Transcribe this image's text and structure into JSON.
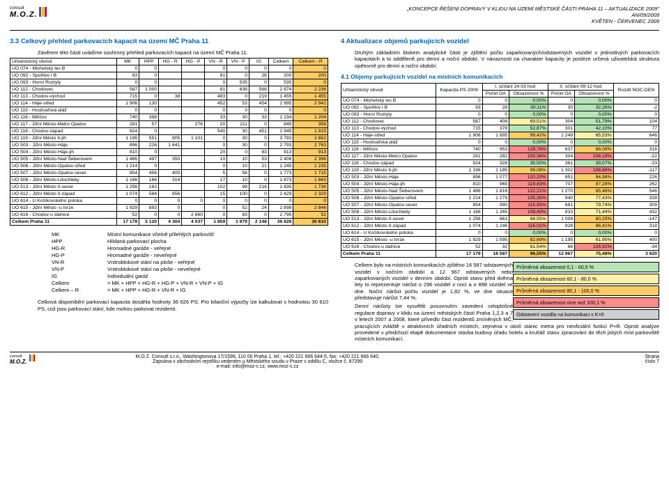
{
  "header": {
    "logo": "M.O.Z.",
    "consult": "consult",
    "right1": "„KONCEPCE ŘEŠENÍ DOPRAVY V KLIDU NA ÚZEMÍ MĚSTSKÉ ČÁSTI PRAHA 11 – AKTUALIZACE 2009\"",
    "right2": "AN/09/2009",
    "right3": "KVĚTEN - ČERVENEC 2009"
  },
  "left": {
    "title": "3.3 Celkový přehled parkovacích kapacit na území MČ Praha 11",
    "intro": "Závěrem této části uvádíme souhrnný přehled parkovacích kapacit na území MČ Praha 11.",
    "table": {
      "cols": [
        "Urbanistický obvod",
        "MK",
        "HPP",
        "HG - R",
        "HG - P",
        "VN - R",
        "VN - P",
        "IG",
        "Celkem",
        "Celkem - R"
      ],
      "rows": [
        [
          "UO 074 - Michelský les B",
          "0",
          "0",
          "",
          "",
          "0",
          "0",
          "0",
          "0",
          "0"
        ],
        [
          "UO 092 - Spořilov I B",
          "93",
          "0",
          "",
          "",
          "81",
          "0",
          "26",
          "200",
          "200"
        ],
        [
          "UO 093 - Horní Roztyly",
          "0",
          "0",
          "",
          "",
          "0",
          "535",
          "0",
          "535",
          "0"
        ],
        [
          "UO 112 - Chodovec",
          "587",
          "1 000",
          "",
          "",
          "81",
          "638",
          "568",
          "2 874",
          "2 236"
        ],
        [
          "UO 113 - Chodov-východ",
          "715",
          "0",
          "38",
          "",
          "483",
          "0",
          "219",
          "1 455",
          "1 455"
        ],
        [
          "UO 114 - Háje-střed",
          "1 906",
          "130",
          "",
          "",
          "452",
          "53",
          "454",
          "2 995",
          "2 942"
        ],
        [
          "UO 115 - Hostivařská pláž",
          "0",
          "0",
          "",
          "",
          "0",
          "0",
          "0",
          "0",
          "0"
        ],
        [
          "UO 116 - Milíčov",
          "740",
          "398",
          "",
          "",
          "33",
          "30",
          "33",
          "1 234",
          "1 204"
        ],
        [
          "UO 117 - Jižní Město-Metro Opatov",
          "281",
          "57",
          "",
          "276",
          "20",
          "211",
          "0",
          "845",
          "358"
        ],
        [
          "UO 118 - Chodov-západ",
          "924",
          "0",
          "",
          "",
          "540",
          "30",
          "451",
          "1 945",
          "1 915"
        ],
        [
          "UO 119 - Jižní Město II-jih",
          "1 196",
          "551",
          "905",
          "1 101",
          "0",
          "30",
          "0",
          "3 783",
          "2 652"
        ],
        [
          "UO 503 - Jižní Město-Háje",
          "896",
          "226",
          "1 641",
          "",
          "0",
          "30",
          "0",
          "2 793",
          "2 763"
        ],
        [
          "UO 504 - Jižní Město-Háje-jih",
          "810",
          "0",
          "",
          "",
          "20",
          "0",
          "83",
          "913",
          "913"
        ],
        [
          "UO 505 - Jižní Město-Nad Šeberovem",
          "1 486",
          "497",
          "350",
          "",
          "10",
          "10",
          "53",
          "2 406",
          "2 396"
        ],
        [
          "UO 506 - Jižní Město-Opatov-střed",
          "1 214",
          "0",
          "",
          "",
          "0",
          "10",
          "21",
          "1 245",
          "1 235"
        ],
        [
          "UO 507 - Jižní Město-Opatov-sever",
          "854",
          "456",
          "400",
          "",
          "5",
          "58",
          "0",
          "1 773",
          "1 715"
        ],
        [
          "UO 508 - Jižní Město-Litochleby",
          "1 166",
          "166",
          "314",
          "",
          "17",
          "10",
          "0",
          "1 673",
          "1 663"
        ],
        [
          "UO 513 - Jižní Město II-sever",
          "1 256",
          "162",
          "",
          "",
          "102",
          "99",
          "216",
          "1 835",
          "1 736"
        ],
        [
          "UO 612 - Jižní Město II-západ",
          "1 074",
          "584",
          "656",
          "",
          "15",
          "100",
          "0",
          "2 429",
          "2 329"
        ],
        [
          "UO 614 - U Košíkovského potoka",
          "0",
          "0",
          "0",
          "0",
          "0",
          "0",
          "0",
          "0",
          "0"
        ],
        [
          "UO 615 - Jižní Město -u tvrze",
          "1 929",
          "893",
          "0",
          "",
          "0",
          "52",
          "24",
          "2 898",
          "2 846"
        ],
        [
          "UO 616 - Chodov-u dálnice",
          "52",
          "0",
          "0",
          "2 660",
          "0",
          "83",
          "0",
          "2 795",
          "52"
        ]
      ],
      "sum": [
        "Celkem Praha 11",
        "17 179",
        "5 120",
        "4 304",
        "4 037",
        "1 859",
        "1 979",
        "2 148",
        "36 626",
        "30 610"
      ]
    },
    "legend": [
      [
        "MK",
        "Místní komunikace včetně přilehlých parkovišť"
      ],
      [
        "HPP",
        "Hlídaná parkovací plocha"
      ],
      [
        "HG-R",
        "Hromadné garáže - veřejné"
      ],
      [
        "HG-P",
        "Hromadné garáže - neveřejné"
      ],
      [
        "VN-R",
        "Vnitroblokové stání na ploše - veřejné"
      ],
      [
        "VN-P",
        "Vnitroblokové stání na ploše - neveřejné"
      ],
      [
        "IG",
        "Individuální garáž"
      ],
      [
        "Celkem",
        "= MK + HPP + HG-R + HG-P + VN-R + VN-P + IG"
      ],
      [
        "Celkem – R",
        "= MK + HPP + HG-R + VN-R + IG"
      ]
    ],
    "outro": "Celková disponibilní parkovací kapacita dosáhla hodnoty 36 626 PS. Pro bilanční výpočty lze kalkulovat s hodnotou 30 610 PS, což jsou parkovací stání, kde mohou parkovat rezidenti."
  },
  "right": {
    "title": "4  Aktualizace objemů parkujících vozidel",
    "para1": "Druhým základním blokem analytické části je zjištění počtu zaparkovaných/odstavených vozidel v jednotlivých parkovacích kapacitách a to odděleně pro denní a noční období. V návaznosti na charakter kapacity je posléze určená uživatelská struktura opětovně pro denní a noční období.",
    "sub": "4.1  Objemy parkujících vozidel na místních komunikacích",
    "table": {
      "head1": [
        "Urbanistický obvod",
        "Kapacita PS 2009",
        "I. sčítání 24-03 hod",
        "II. sčítání 09-12 hod",
        "Rozdíl NOC-DEN"
      ],
      "head2": [
        "Počet OA",
        "Obsazenost %",
        "Počet OA",
        "Obsazenost %"
      ],
      "rows": [
        {
          "cells": [
            "UO 074 - Michelský les B",
            "0",
            "0",
            "0,00%",
            "0",
            "0,00%",
            "0"
          ],
          "c1": "nb-green",
          "c2": "nb-green"
        },
        {
          "cells": [
            "UO 092 - Spořilov I B",
            "93",
            "28",
            "30,11%",
            "30",
            "32,26%",
            "-2"
          ],
          "c1": "nb-green",
          "c2": "nb-green"
        },
        {
          "cells": [
            "UO 093 - Horní Roztyly",
            "0",
            "0",
            "0,00%",
            "0",
            "0,00%",
            "0"
          ],
          "c1": "nb-green",
          "c2": "nb-green"
        },
        {
          "cells": [
            "UO 112 - Chodovec",
            "587",
            "408",
            "69,51%",
            "304",
            "51,79%",
            "104"
          ],
          "c1": "nb-yellow",
          "c2": "nb-green"
        },
        {
          "cells": [
            "UO 113 - Chodov-východ",
            "715",
            "378",
            "52,87%",
            "301",
            "42,10%",
            "77"
          ],
          "c1": "nb-green",
          "c2": "nb-green"
        },
        {
          "cells": [
            "UO 114 - Háje-střed",
            "1 906",
            "1 895",
            "99,42%",
            "1 249",
            "65,53%",
            "646"
          ],
          "c1": "nb-orange",
          "c2": "nb-yellow"
        },
        {
          "cells": [
            "UO 115 - Hostivařská pláž",
            "0",
            "0",
            "0,00%",
            "0",
            "0,00%",
            "0"
          ],
          "c1": "nb-green",
          "c2": "nb-green"
        },
        {
          "cells": [
            "UO 116 - Milíčov",
            "740",
            "953",
            "128,78%",
            "637",
            "86,08%",
            "316"
          ],
          "c1": "nb-red",
          "c2": "nb-orange"
        },
        {
          "cells": [
            "UO 117 - Jižní Město-Metro Opatov",
            "281",
            "282",
            "100,36%",
            "304",
            "108,19%",
            "-22"
          ],
          "c1": "nb-red",
          "c2": "nb-red"
        },
        {
          "cells": [
            "UO 118 - Chodov-západ",
            "924",
            "328",
            "35,50%",
            "361",
            "39,07%",
            "-33"
          ],
          "c1": "nb-green",
          "c2": "nb-green"
        },
        {
          "cells": [
            "UO 119 - Jižní Město II-jih",
            "1 196",
            "1 185",
            "99,08%",
            "1 302",
            "108,86%",
            "-117"
          ],
          "c1": "nb-orange",
          "c2": "nb-red"
        },
        {
          "cells": [
            "UO 503 - Jižní Město-Háje",
            "896",
            "1 077",
            "120,20%",
            "851",
            "94,98%",
            "226"
          ],
          "c1": "nb-red",
          "c2": "nb-orange"
        },
        {
          "cells": [
            "UO 504 - Jižní Město-Háje-jih",
            "810",
            "969",
            "119,63%",
            "707",
            "87,28%",
            "262"
          ],
          "c1": "nb-red",
          "c2": "nb-orange"
        },
        {
          "cells": [
            "UO 505 - Jižní Město-Nad Šeberovem",
            "1 486",
            "1 816",
            "122,21%",
            "1 270",
            "85,46%",
            "546"
          ],
          "c1": "nb-red",
          "c2": "nb-orange"
        },
        {
          "cells": [
            "UO 506 - Jižní Město-Opatov-střed",
            "1 214",
            "1 279",
            "105,35%",
            "940",
            "77,43%",
            "339"
          ],
          "c1": "nb-red",
          "c2": "nb-yellow"
        },
        {
          "cells": [
            "UO 507 - Jižní Město-Opatov-sever",
            "854",
            "990",
            "115,93%",
            "681",
            "79,74%",
            "309"
          ],
          "c1": "nb-red",
          "c2": "nb-yellow"
        },
        {
          "cells": [
            "UO 508 - Jižní Město-Litochleby",
            "1 166",
            "1 265",
            "108,49%",
            "833",
            "71,44%",
            "432"
          ],
          "c1": "nb-red",
          "c2": "nb-yellow"
        },
        {
          "cells": [
            "UO 513 - Jižní Město II-sever",
            "1 256",
            "861",
            "68,55%",
            "1 008",
            "80,25%",
            "-147"
          ],
          "c1": "nb-yellow",
          "c2": "nb-orange"
        },
        {
          "cells": [
            "UO 612 - Jižní Město II-západ",
            "1 074",
            "1 246",
            "116,01%",
            "928",
            "86,41%",
            "318"
          ],
          "c1": "nb-red",
          "c2": "nb-orange"
        },
        {
          "cells": [
            "UO 614 - U Košíkovského potoka",
            "0",
            "0",
            "0,00%",
            "0",
            "0,00%",
            "0"
          ],
          "c1": "nb-green",
          "c2": "nb-green"
        },
        {
          "cells": [
            "UO 615 - Jižní Město -u tvrze",
            "1 929",
            "1 595",
            "82,69%",
            "1 195",
            "61,95%",
            "400"
          ],
          "c1": "nb-orange",
          "c2": "nb-yellow"
        },
        {
          "cells": [
            "UO 616 - Chodov-u dálnice",
            "52",
            "32",
            "61,54%",
            "66",
            "126,92%",
            "-34"
          ],
          "c1": "nb-yellow",
          "c2": "nb-red"
        }
      ],
      "sum": [
        "Celkem Praha 11",
        "17 179",
        "16 587",
        "96,55%",
        "12 967",
        "75,48%",
        "3 620"
      ],
      "sumc1": "nb-orange",
      "sumc2": "nb-yellow"
    },
    "notes": [
      {
        "t": "Průměrná obsazenost 0,1 - 60,0 %",
        "c": "nb-green"
      },
      {
        "t": "Průměrná obsazenost 60,1 - 80,0 %",
        "c": "nb-yellow"
      },
      {
        "t": "Průměrná obsazenost 80,1 - 100,0 %",
        "c": "nb-orange"
      },
      {
        "t": "Průměrná obsazenost více než 100,1 %",
        "c": "nb-red"
      },
      {
        "t": "Odstavení vozidla na komunikaci s K=0",
        "c": "nb-gray"
      }
    ],
    "para2": "Celkem bylo na místních komunikacích zjištěno 16 587 odstavených vozidel v nočním období a 12 967 odstavených nebo zaparkovaných vozidel v denním období. Oproti stavu před dvěma lety to reprezentuje nárůst o 296 vozidel v noci a o 898 vozidel ve dne. Noční nárůst počtu vozidel je 1,82 %, ve dne situace představuje nárůst 7,44 %.",
    "para3": "Denní nárůsty lze vysvětlit posuvnutím zavedení celoplošné regulace dopravy v klidu na území městských částí Praha 1,2,3 a 7 v letech 2007 a 2008, které přivedlo část rezidentů zmíněných MČ, pracujících zvláště v atraktivních úřadních místech, zejména v okolí stanic metra pro neoficiální funkci P+R. Oproti analýze provedené v předchozí etapě dokumentace stavba budovy úřadu hotelu a kruháč stavu zpracování do těch jistých míst parkoviště místních komunikací."
  },
  "footer": {
    "left1": "M.O.Z. Consult s.r.o., Washingtonova 17/1599, 110 00 Praha 1, tel.: +420 221 666 644-5, fax: +420 221 666 640,",
    "left2": "Zapsána v obchodním rejstříku vedeném u Městského soudu v Praze v oddílu C, vložce č. 87299",
    "left3": "e-mail: info@moz-c.cz, www.moz-c.cz",
    "right1": "Strana",
    "right2": "číslo 7"
  }
}
